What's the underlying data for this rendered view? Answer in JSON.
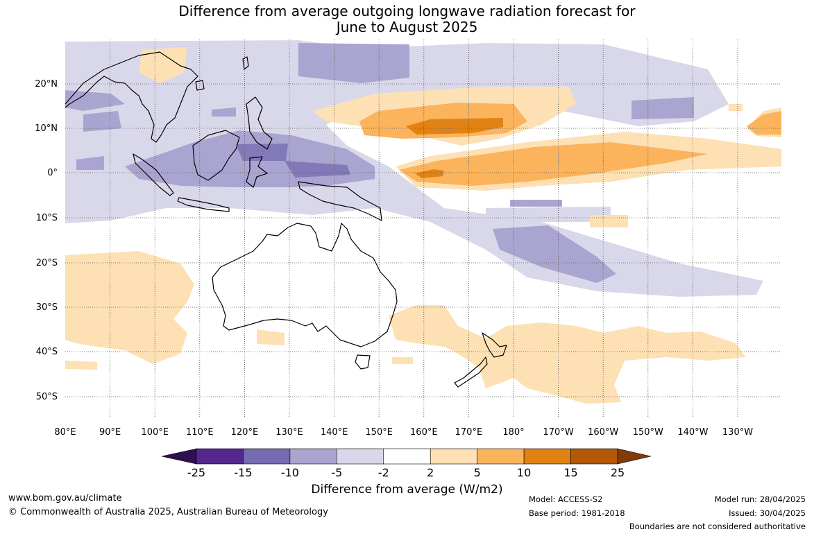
{
  "title_line1": "Difference from average outgoing longwave radiation forecast for",
  "title_line2": "June to August 2025",
  "lat_labels": [
    "20°N",
    "10°N",
    "0°",
    "10°S",
    "20°S",
    "30°S",
    "40°S",
    "50°S"
  ],
  "lon_labels": [
    "80°E",
    "90°E",
    "100°E",
    "110°E",
    "120°E",
    "130°E",
    "140°E",
    "150°E",
    "160°E",
    "170°E",
    "180°",
    "170°W",
    "160°W",
    "150°W",
    "140°W",
    "130°W"
  ],
  "colorbar": {
    "ticks": [
      "-25",
      "-15",
      "-10",
      "-5",
      "-2",
      "2",
      "5",
      "10",
      "15",
      "25"
    ],
    "colors": [
      "#2e0f4f",
      "#54278f",
      "#756bb1",
      "#aaa5d0",
      "#d9d8ea",
      "#ffffff",
      "#fde0b3",
      "#fbb35c",
      "#e08214",
      "#b35806",
      "#7f3b08"
    ],
    "label": "Difference from average (W/m2)"
  },
  "footer": {
    "website": "www.bom.gov.au/climate",
    "copyright": "© Commonwealth of Australia 2025, Australian Bureau of Meteorology",
    "model": "Model: ACCESS-S2",
    "base_period": "Base period: 1981-2018",
    "model_run": "Model run: 28/04/2025",
    "issued": "Issued: 30/04/2025",
    "disclaimer": "Boundaries are not considered authoritative"
  }
}
